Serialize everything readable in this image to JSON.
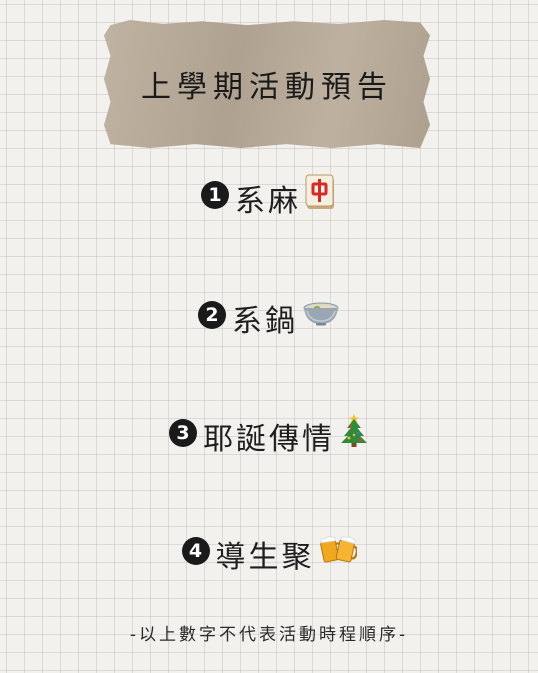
{
  "title": "上學期活動預告",
  "items": [
    {
      "number": "1",
      "label": "系麻",
      "icon": "mahjong-red-dragon-icon"
    },
    {
      "number": "2",
      "label": "系鍋",
      "icon": "hotpot-bowl-icon"
    },
    {
      "number": "3",
      "label": "耶誕傳情",
      "icon": "christmas-tree-icon"
    },
    {
      "number": "4",
      "label": "導生聚",
      "icon": "beer-mugs-icon"
    }
  ],
  "footer": "-以上數字不代表活動時程順序-",
  "colors": {
    "background": "#f2f1ee",
    "grid": "#c8c8c8",
    "tape": "#b9aa98",
    "text": "#1a1a1a"
  }
}
